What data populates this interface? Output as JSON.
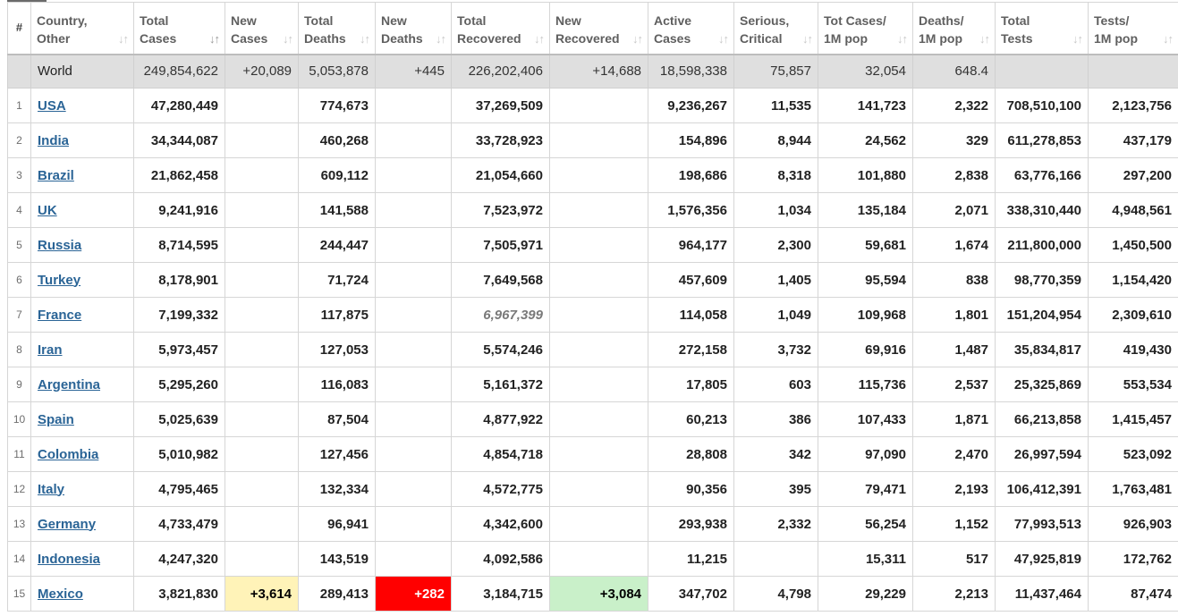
{
  "columns": [
    {
      "label": "#",
      "sortable": false
    },
    {
      "label": "Country,\nOther",
      "sortable": true
    },
    {
      "label": "Total\nCases",
      "sortable": true,
      "active_sort": true
    },
    {
      "label": "New\nCases",
      "sortable": true
    },
    {
      "label": "Total\nDeaths",
      "sortable": true
    },
    {
      "label": "New\nDeaths",
      "sortable": true
    },
    {
      "label": "Total\nRecovered",
      "sortable": true
    },
    {
      "label": "New\nRecovered",
      "sortable": true
    },
    {
      "label": "Active\nCases",
      "sortable": true
    },
    {
      "label": "Serious,\nCritical",
      "sortable": true
    },
    {
      "label": "Tot Cases/\n1M pop",
      "sortable": true
    },
    {
      "label": "Deaths/\n1M pop",
      "sortable": true
    },
    {
      "label": "Total\nTests",
      "sortable": true
    },
    {
      "label": "Tests/\n1M pop",
      "sortable": true
    }
  ],
  "sort_icons": {
    "inactive": "↓↑",
    "active": "↓↑"
  },
  "world": {
    "country": "World",
    "total_cases": "249,854,622",
    "new_cases": "+20,089",
    "total_deaths": "5,053,878",
    "new_deaths": "+445",
    "total_recovered": "226,202,406",
    "new_recovered": "+14,688",
    "active_cases": "18,598,338",
    "serious_critical": "75,857",
    "tot_cases_1m": "32,054",
    "deaths_1m": "648.4",
    "total_tests": "",
    "tests_1m": ""
  },
  "rows": [
    {
      "idx": "1",
      "country": "USA",
      "total_cases": "47,280,449",
      "new_cases": "",
      "total_deaths": "774,673",
      "new_deaths": "",
      "total_recovered": "37,269,509",
      "new_recovered": "",
      "active_cases": "9,236,267",
      "serious_critical": "11,535",
      "tot_cases_1m": "141,723",
      "deaths_1m": "2,322",
      "total_tests": "708,510,100",
      "tests_1m": "2,123,756"
    },
    {
      "idx": "2",
      "country": "India",
      "total_cases": "34,344,087",
      "new_cases": "",
      "total_deaths": "460,268",
      "new_deaths": "",
      "total_recovered": "33,728,923",
      "new_recovered": "",
      "active_cases": "154,896",
      "serious_critical": "8,944",
      "tot_cases_1m": "24,562",
      "deaths_1m": "329",
      "total_tests": "611,278,853",
      "tests_1m": "437,179"
    },
    {
      "idx": "3",
      "country": "Brazil",
      "total_cases": "21,862,458",
      "new_cases": "",
      "total_deaths": "609,112",
      "new_deaths": "",
      "total_recovered": "21,054,660",
      "new_recovered": "",
      "active_cases": "198,686",
      "serious_critical": "8,318",
      "tot_cases_1m": "101,880",
      "deaths_1m": "2,838",
      "total_tests": "63,776,166",
      "tests_1m": "297,200"
    },
    {
      "idx": "4",
      "country": "UK",
      "total_cases": "9,241,916",
      "new_cases": "",
      "total_deaths": "141,588",
      "new_deaths": "",
      "total_recovered": "7,523,972",
      "new_recovered": "",
      "active_cases": "1,576,356",
      "serious_critical": "1,034",
      "tot_cases_1m": "135,184",
      "deaths_1m": "2,071",
      "total_tests": "338,310,440",
      "tests_1m": "4,948,561"
    },
    {
      "idx": "5",
      "country": "Russia",
      "total_cases": "8,714,595",
      "new_cases": "",
      "total_deaths": "244,447",
      "new_deaths": "",
      "total_recovered": "7,505,971",
      "new_recovered": "",
      "active_cases": "964,177",
      "serious_critical": "2,300",
      "tot_cases_1m": "59,681",
      "deaths_1m": "1,674",
      "total_tests": "211,800,000",
      "tests_1m": "1,450,500"
    },
    {
      "idx": "6",
      "country": "Turkey",
      "total_cases": "8,178,901",
      "new_cases": "",
      "total_deaths": "71,724",
      "new_deaths": "",
      "total_recovered": "7,649,568",
      "new_recovered": "",
      "active_cases": "457,609",
      "serious_critical": "1,405",
      "tot_cases_1m": "95,594",
      "deaths_1m": "838",
      "total_tests": "98,770,359",
      "tests_1m": "1,154,420"
    },
    {
      "idx": "7",
      "country": "France",
      "total_cases": "7,199,332",
      "new_cases": "",
      "total_deaths": "117,875",
      "new_deaths": "",
      "total_recovered": "6,967,399",
      "recovered_italic": true,
      "new_recovered": "",
      "active_cases": "114,058",
      "serious_critical": "1,049",
      "tot_cases_1m": "109,968",
      "deaths_1m": "1,801",
      "total_tests": "151,204,954",
      "tests_1m": "2,309,610"
    },
    {
      "idx": "8",
      "country": "Iran",
      "total_cases": "5,973,457",
      "new_cases": "",
      "total_deaths": "127,053",
      "new_deaths": "",
      "total_recovered": "5,574,246",
      "new_recovered": "",
      "active_cases": "272,158",
      "serious_critical": "3,732",
      "tot_cases_1m": "69,916",
      "deaths_1m": "1,487",
      "total_tests": "35,834,817",
      "tests_1m": "419,430"
    },
    {
      "idx": "9",
      "country": "Argentina",
      "total_cases": "5,295,260",
      "new_cases": "",
      "total_deaths": "116,083",
      "new_deaths": "",
      "total_recovered": "5,161,372",
      "new_recovered": "",
      "active_cases": "17,805",
      "serious_critical": "603",
      "tot_cases_1m": "115,736",
      "deaths_1m": "2,537",
      "total_tests": "25,325,869",
      "tests_1m": "553,534"
    },
    {
      "idx": "10",
      "country": "Spain",
      "total_cases": "5,025,639",
      "new_cases": "",
      "total_deaths": "87,504",
      "new_deaths": "",
      "total_recovered": "4,877,922",
      "new_recovered": "",
      "active_cases": "60,213",
      "serious_critical": "386",
      "tot_cases_1m": "107,433",
      "deaths_1m": "1,871",
      "total_tests": "66,213,858",
      "tests_1m": "1,415,457"
    },
    {
      "idx": "11",
      "country": "Colombia",
      "total_cases": "5,010,982",
      "new_cases": "",
      "total_deaths": "127,456",
      "new_deaths": "",
      "total_recovered": "4,854,718",
      "new_recovered": "",
      "active_cases": "28,808",
      "serious_critical": "342",
      "tot_cases_1m": "97,090",
      "deaths_1m": "2,470",
      "total_tests": "26,997,594",
      "tests_1m": "523,092"
    },
    {
      "idx": "12",
      "country": "Italy",
      "total_cases": "4,795,465",
      "new_cases": "",
      "total_deaths": "132,334",
      "new_deaths": "",
      "total_recovered": "4,572,775",
      "new_recovered": "",
      "active_cases": "90,356",
      "serious_critical": "395",
      "tot_cases_1m": "79,471",
      "deaths_1m": "2,193",
      "total_tests": "106,412,391",
      "tests_1m": "1,763,481"
    },
    {
      "idx": "13",
      "country": "Germany",
      "total_cases": "4,733,479",
      "new_cases": "",
      "total_deaths": "96,941",
      "new_deaths": "",
      "total_recovered": "4,342,600",
      "new_recovered": "",
      "active_cases": "293,938",
      "serious_critical": "2,332",
      "tot_cases_1m": "56,254",
      "deaths_1m": "1,152",
      "total_tests": "77,993,513",
      "tests_1m": "926,903"
    },
    {
      "idx": "14",
      "country": "Indonesia",
      "total_cases": "4,247,320",
      "new_cases": "",
      "total_deaths": "143,519",
      "new_deaths": "",
      "total_recovered": "4,092,586",
      "new_recovered": "",
      "active_cases": "11,215",
      "serious_critical": "",
      "tot_cases_1m": "15,311",
      "deaths_1m": "517",
      "total_tests": "47,925,819",
      "tests_1m": "172,762"
    },
    {
      "idx": "15",
      "country": "Mexico",
      "total_cases": "3,821,830",
      "new_cases": "+3,614",
      "total_deaths": "289,413",
      "new_deaths": "+282",
      "total_recovered": "3,184,715",
      "new_recovered": "+3,084",
      "active_cases": "347,702",
      "serious_critical": "4,798",
      "tot_cases_1m": "29,229",
      "deaths_1m": "2,213",
      "total_tests": "11,437,464",
      "tests_1m": "87,474"
    }
  ],
  "colors": {
    "link": "#2a6496",
    "world_row_bg": "#dfdfdf",
    "new_cases_bg": "#fff3b8",
    "new_deaths_bg": "#ff0000",
    "new_recovered_bg": "#c9f0c9",
    "border": "#d6d6d6"
  }
}
